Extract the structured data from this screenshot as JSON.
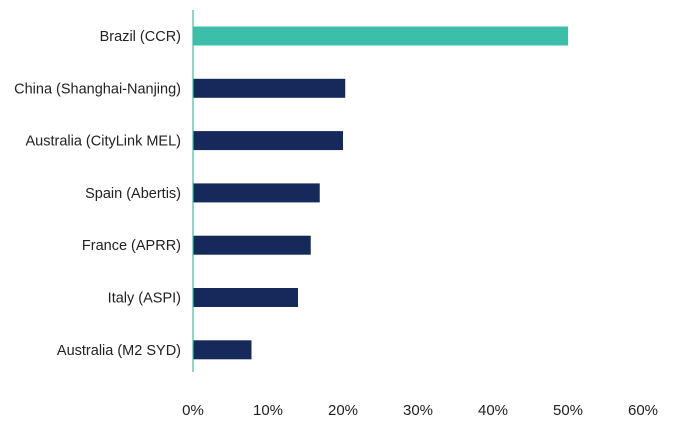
{
  "chart_data": {
    "type": "bar",
    "orientation": "horizontal",
    "categories": [
      "Brazil (CCR)",
      "China (Shanghai-Nanjing)",
      "Australia (CityLink MEL)",
      "Spain (Abertis)",
      "France (APRR)",
      "Italy (ASPI)",
      "Australia (M2 SYD)"
    ],
    "values": [
      50,
      20.3,
      20,
      16.9,
      15.7,
      14,
      7.8
    ],
    "highlight_index": 0,
    "colors": {
      "highlight": "#3bbfa8",
      "bar": "#152a5b",
      "axis": "#3bbfa8"
    },
    "xlim": [
      0,
      60
    ],
    "xticks": [
      0,
      10,
      20,
      30,
      40,
      50,
      60
    ],
    "xtick_labels": [
      "0%",
      "10%",
      "20%",
      "30%",
      "40%",
      "50%",
      "60%"
    ],
    "grid": false,
    "legend": "none"
  }
}
